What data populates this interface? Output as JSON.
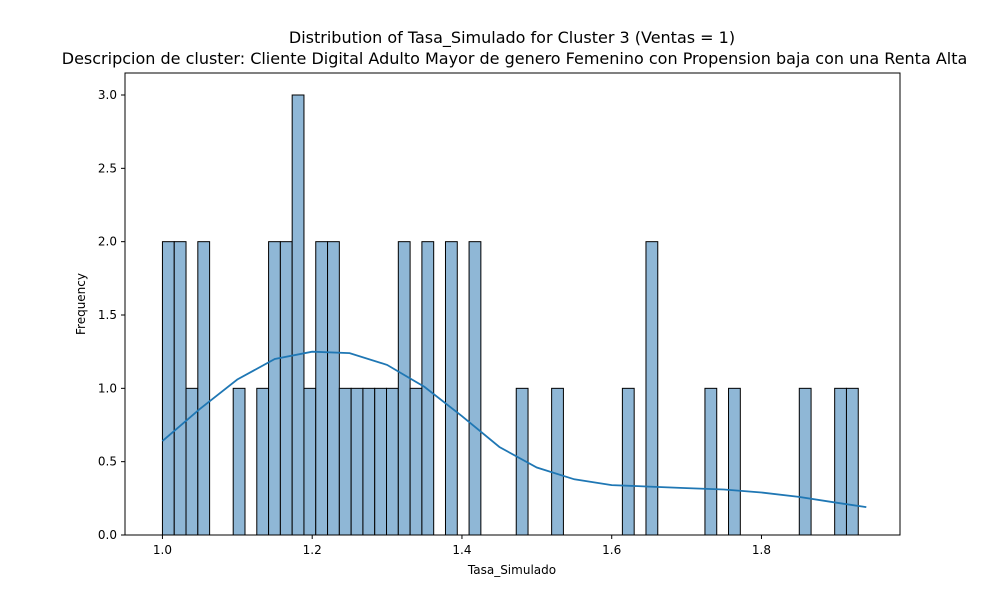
{
  "chart_data": {
    "type": "histogram",
    "title": "Distribution of Tasa_Simulado for Cluster 3 (Ventas = 1)",
    "subtitle": " Descripcion de cluster: Cliente Digital Adulto Mayor de genero Femenino con Propension baja con una Renta Alta",
    "xlabel": "Tasa_Simulado",
    "ylabel": "Frequency",
    "xlim": [
      0.95,
      1.985
    ],
    "ylim": [
      0,
      3.15
    ],
    "x_ticks": [
      1.0,
      1.2,
      1.4,
      1.6,
      1.8
    ],
    "x_tick_labels": [
      "1.0",
      "1.2",
      "1.4",
      "1.6",
      "1.8"
    ],
    "y_ticks": [
      0.0,
      0.5,
      1.0,
      1.5,
      2.0,
      2.5,
      3.0
    ],
    "y_tick_labels": [
      "0.0",
      "0.5",
      "1.0",
      "1.5",
      "2.0",
      "2.5",
      "3.0"
    ],
    "bin_start": 1.0,
    "bin_width": 0.01575,
    "counts": [
      2,
      2,
      1,
      2,
      0,
      0,
      1,
      0,
      1,
      2,
      2,
      3,
      1,
      2,
      2,
      1,
      1,
      1,
      1,
      1,
      2,
      1,
      2,
      0,
      2,
      0,
      2,
      0,
      0,
      0,
      1,
      0,
      0,
      1,
      0,
      0,
      0,
      0,
      0,
      1,
      0,
      2,
      0,
      0,
      0,
      0,
      1,
      0,
      1,
      0,
      0,
      0,
      0,
      0,
      1,
      0,
      0,
      1,
      1
    ],
    "bar_color": "#8fb7d6",
    "bar_edge_color": "#000000",
    "kde": {
      "color": "#1f77b4",
      "x": [
        1.0,
        1.05,
        1.1,
        1.15,
        1.2,
        1.25,
        1.3,
        1.35,
        1.4,
        1.45,
        1.5,
        1.55,
        1.6,
        1.65,
        1.7,
        1.75,
        1.8,
        1.85,
        1.9,
        1.94
      ],
      "y": [
        0.64,
        0.86,
        1.06,
        1.2,
        1.25,
        1.24,
        1.16,
        1.01,
        0.81,
        0.6,
        0.46,
        0.38,
        0.34,
        0.33,
        0.32,
        0.31,
        0.29,
        0.26,
        0.22,
        0.19
      ]
    }
  }
}
